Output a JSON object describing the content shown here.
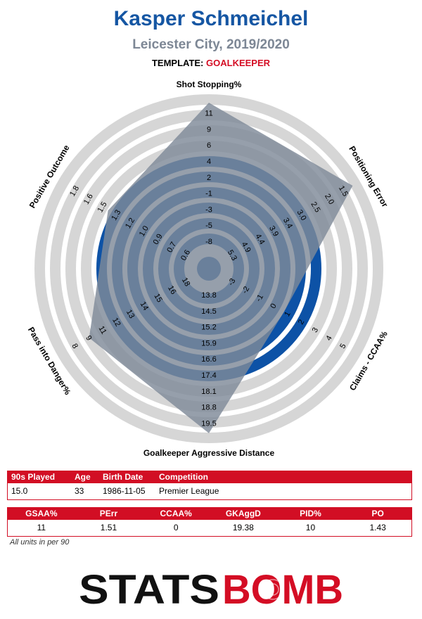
{
  "header": {
    "player_name": "Kasper Schmeichel",
    "club_season": "Leicester City, 2019/2020",
    "template_label": "TEMPLATE:",
    "template_value": "GOALKEEPER"
  },
  "colors": {
    "title_blue": "#1556a3",
    "subtitle_grey": "#7d8795",
    "accent_red": "#d40d24",
    "ring_grey": "#d6d6d6",
    "ring_blue": "#0d52a6",
    "polygon_grey": "#7f8a99"
  },
  "chart_data": {
    "type": "radar",
    "axes": [
      {
        "name": "Shot Stopping%",
        "ticks": [
          "-8",
          "-5",
          "-3",
          "-1",
          "2",
          "4",
          "6",
          "9",
          "11"
        ],
        "value": 11,
        "fraction": 1.0
      },
      {
        "name": "Positioning Error",
        "ticks": [
          "5.3",
          "4.9",
          "4.4",
          "3.9",
          "3.4",
          "3.0",
          "2.5",
          "2.0",
          "1.5"
        ],
        "value": 1.51,
        "fraction": 1.0
      },
      {
        "name": "Claims - CCAA%",
        "ticks": [
          "-3",
          "-2",
          "-1",
          "0",
          "1",
          "2",
          "3",
          "4",
          "5"
        ],
        "value": 0,
        "fraction": 0.455
      },
      {
        "name": "Goalkeeper Aggressive Distance",
        "ticks": [
          "13.8",
          "14.5",
          "15.2",
          "15.9",
          "16.6",
          "17.4",
          "18.1",
          "18.8",
          "19.5"
        ],
        "value": 19.38,
        "fraction": 0.99
      },
      {
        "name": "Pass into Danger%",
        "ticks": [
          "18",
          "16",
          "15",
          "14",
          "13",
          "12",
          "11",
          "9",
          "8"
        ],
        "value": 10,
        "fraction": 0.81
      },
      {
        "name": "Positive Outcome",
        "ticks": [
          "0.6",
          "0.7",
          "0.9",
          "1.0",
          "1.2",
          "1.3",
          "1.5",
          "1.6",
          "1.8"
        ],
        "value": 1.43,
        "fraction": 0.66
      }
    ],
    "rings": 10
  },
  "table1": {
    "headers": [
      "90s Played",
      "Age",
      "Birth Date",
      "Competition"
    ],
    "values": [
      "15.0",
      "33",
      "1986-11-05",
      "Premier League"
    ]
  },
  "table2": {
    "headers": [
      "GSAA%",
      "PErr",
      "CCAA%",
      "GKAggD",
      "PID%",
      "PO"
    ],
    "values": [
      "11",
      "1.51",
      "0",
      "19.38",
      "10",
      "1.43"
    ]
  },
  "footnote": "All units in per 90",
  "logo": {
    "part1": "STATS",
    "part2": "BOMB"
  }
}
